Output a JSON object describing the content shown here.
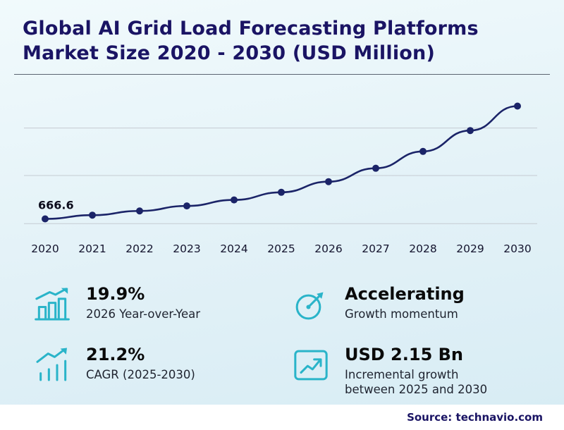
{
  "title": "Global AI Grid Load Forecasting Platforms Market Size 2020 - 2030 (USD Million)",
  "source": "Source: technavio.com",
  "colors": {
    "accent_teal": "#2ab4c9",
    "navy_title": "#1a1464",
    "series_line": "#1b2468",
    "gridline": "#c5cbd2"
  },
  "chart_data": {
    "type": "line",
    "title": "Global AI Grid Load Forecasting Platforms Market Size 2020 - 2030 (USD Million)",
    "x": [
      2020,
      2021,
      2022,
      2023,
      2024,
      2025,
      2026,
      2027,
      2028,
      2029,
      2030
    ],
    "values": [
      666.6,
      760,
      865,
      990,
      1140,
      1330,
      1595,
      1930,
      2350,
      2870,
      3480
    ],
    "first_point_label": "666.6",
    "xlabel": "",
    "ylabel": "",
    "ylim": [
      500,
      3700
    ],
    "grid": "horizontal",
    "legend": "none"
  },
  "stats": [
    {
      "value": "19.9%",
      "label": "2026 Year-over-Year",
      "icon": "growth-bars-icon"
    },
    {
      "value": "Accelerating",
      "label": "Growth momentum",
      "icon": "speedometer-icon"
    },
    {
      "value": "21.2%",
      "label": "CAGR (2025-2030)",
      "icon": "trend-arrow-icon"
    },
    {
      "value": "USD 2.15 Bn",
      "label": "Incremental growth between 2025 and 2030",
      "icon": "incremental-growth-icon"
    }
  ]
}
